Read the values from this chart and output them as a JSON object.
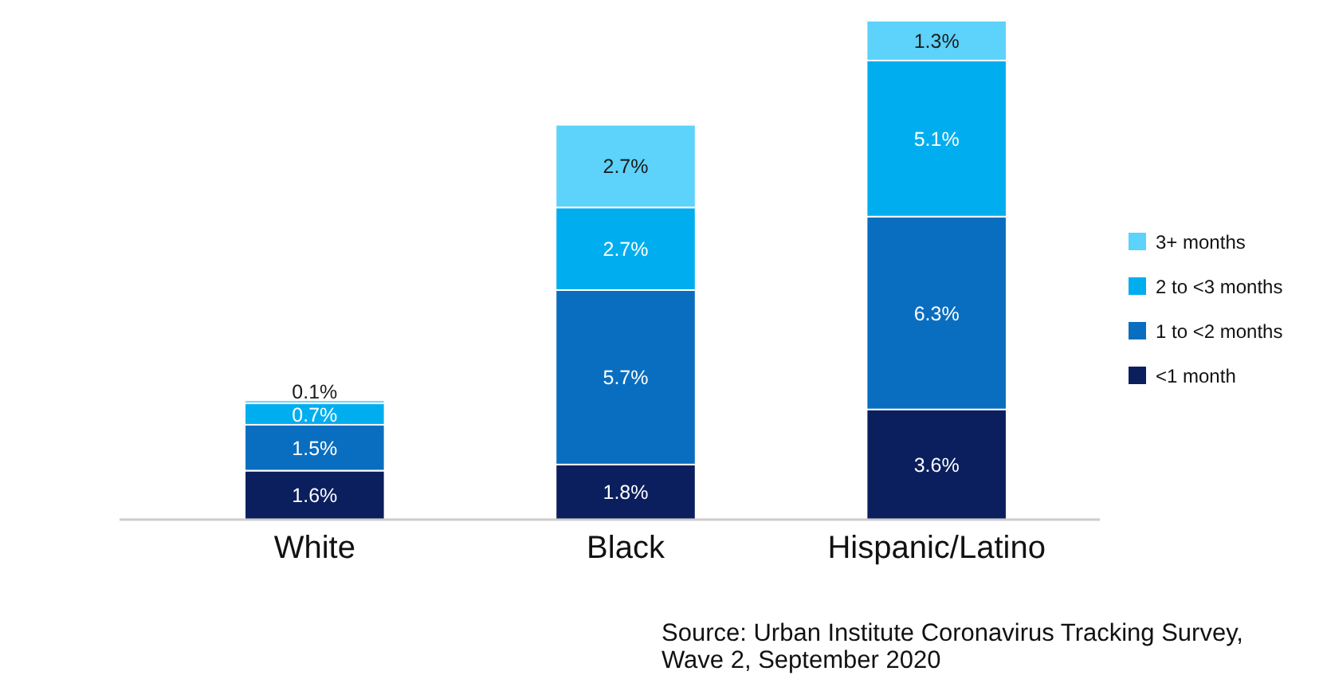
{
  "chart_data": {
    "type": "bar",
    "stacked": true,
    "legend": "right",
    "categories": [
      "White",
      "Black",
      "Hispanic/Latino"
    ],
    "series": [
      {
        "name": "<1 month",
        "color": "#0b1f5e",
        "values": [
          1.6,
          1.8,
          3.6
        ],
        "value_labels": [
          "1.6%",
          "1.8%",
          "3.6%"
        ]
      },
      {
        "name": "1 to <2 months",
        "color": "#0a6ec0",
        "values": [
          1.5,
          5.7,
          6.3
        ],
        "value_labels": [
          "1.5%",
          "5.7%",
          "6.3%"
        ]
      },
      {
        "name": "2 to <3 months",
        "color": "#00aeef",
        "values": [
          0.7,
          2.7,
          5.1
        ],
        "value_labels": [
          "0.7%",
          "2.7%",
          "5.1%"
        ]
      },
      {
        "name": "3+ months",
        "color": "#5dd2fa",
        "values": [
          0.1,
          2.7,
          1.3
        ],
        "value_labels": [
          "0.1%",
          "2.7%",
          "1.3%"
        ]
      }
    ],
    "annotations": [
      "Source: Urban Institute Coronavirus Tracking Survey, Wave 2, September 2020"
    ]
  }
}
